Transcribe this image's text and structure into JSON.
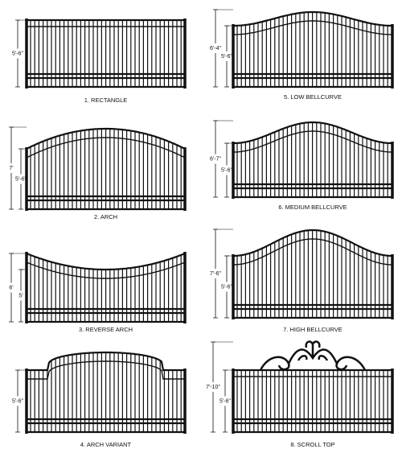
{
  "gates": [
    {
      "caption": "1. RECTANGLE",
      "dimensions": [
        "5'-6\""
      ]
    },
    {
      "caption": "2. ARCH",
      "dimensions": [
        "7'",
        "5'-6\""
      ]
    },
    {
      "caption": "3. REVERSE ARCH",
      "dimensions": [
        "6'",
        "5'"
      ]
    },
    {
      "caption": "4. ARCH VARIANT",
      "dimensions": [
        "5'-6\""
      ]
    },
    {
      "caption": "5. LOW BELLCURVE",
      "dimensions": [
        "6'-4\"",
        "5'-6\""
      ]
    },
    {
      "caption": "6. MEDIUM BELLCURVE",
      "dimensions": [
        "6'-7\"",
        "5'-6\""
      ]
    },
    {
      "caption": "7. HIGH BELLCURVE",
      "dimensions": [
        "7'-6\"",
        "5'-6\""
      ]
    },
    {
      "caption": "8. SCROLL TOP",
      "dimensions": [
        "7'-10\"",
        "5'-6\""
      ]
    }
  ]
}
